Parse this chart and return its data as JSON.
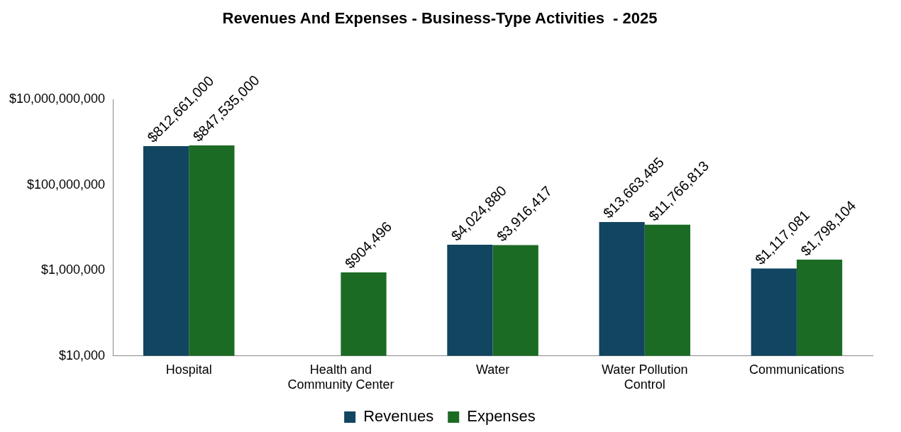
{
  "chart_data": {
    "type": "bar",
    "title": "Revenues And Expenses - Business-Type Activities  - 2025",
    "categories": [
      "Hospital",
      "Health and Community Center",
      "Water",
      "Water Pollution Control",
      "Communications"
    ],
    "series": [
      {
        "name": "Revenues",
        "color": "#114560",
        "values": [
          812661000,
          null,
          4024880,
          13663485,
          1117081
        ],
        "value_labels": [
          "$812,661,000",
          null,
          "$4,024,880",
          "$13,663,485",
          "$1,117,081"
        ]
      },
      {
        "name": "Expenses",
        "color": "#1b6b25",
        "values": [
          847535000,
          904496,
          3916417,
          11766813,
          1798104
        ],
        "value_labels": [
          "$847,535,000",
          "$904,496",
          "$3,916,417",
          "$11,766,813",
          "$1,798,104"
        ]
      }
    ],
    "log": true,
    "ylim": [
      10000,
      10000000000
    ],
    "yticks": [
      {
        "value": 10000,
        "label": "$10,000"
      },
      {
        "value": 1000000,
        "label": "$1,000,000"
      },
      {
        "value": 100000000,
        "label": "$100,000,000"
      },
      {
        "value": 10000000000,
        "label": "$10,000,000,000"
      }
    ],
    "grid": false,
    "legend": "bottom"
  }
}
